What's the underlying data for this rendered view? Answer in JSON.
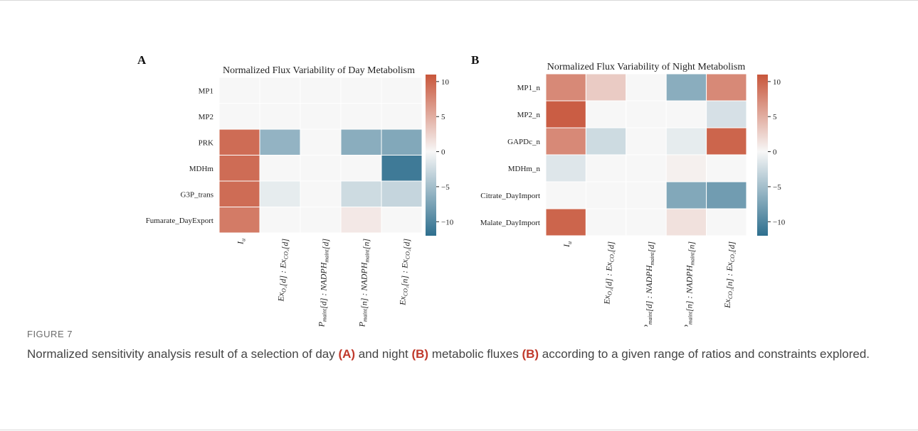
{
  "figure": {
    "label": "FIGURE 7",
    "caption_parts": [
      {
        "text": "Normalized sensitivity analysis result of a selection of day ",
        "bold": false
      },
      {
        "text": "(A)",
        "bold": true
      },
      {
        "text": " and night ",
        "bold": false
      },
      {
        "text": "(B)",
        "bold": true
      },
      {
        "text": " metabolic fluxes ",
        "bold": false
      },
      {
        "text": "(B)",
        "bold": true
      },
      {
        "text": " according to a given range of ratios and constraints explored.",
        "bold": false
      }
    ]
  },
  "colors": {
    "negative": "#2e6f8e",
    "neutral": "#f7f7f7",
    "positive": "#c8563b",
    "grid": "#ffffff"
  },
  "chart_data": [
    {
      "type": "heatmap",
      "panel_label": "A",
      "title": "Normalized Flux Variability of Day Metabolism",
      "rows": [
        "MP1",
        "MP2",
        "PRK",
        "MDHm",
        "G3P_trans",
        "Fumarate_DayExport"
      ],
      "columns": [
        {
          "base": "I",
          "sub": "u"
        },
        {
          "parts": [
            [
              "Ex",
              "O₂"
            ],
            [
              "[d] : Ex",
              ""
            ],
            [
              "",
              "CO₂"
            ],
            [
              "[d]",
              ""
            ]
          ],
          "label": "Ex_O2[d] : Ex_CO2[d]"
        },
        {
          "label": "ATP_maint[d] : NADPH_maint[d]"
        },
        {
          "label": "ATP_maint[n] : NADPH_maint[n]"
        },
        {
          "label": "Ex_CO2[n] : Ex_CO2[d]"
        }
      ],
      "values": [
        [
          0,
          0,
          0,
          0,
          0
        ],
        [
          0,
          0,
          0,
          0,
          0
        ],
        [
          9.5,
          -6,
          0,
          -6.5,
          -7
        ],
        [
          9.5,
          0,
          0,
          0,
          -11
        ],
        [
          9.5,
          -1,
          0,
          -2.5,
          -3
        ],
        [
          8.5,
          0,
          0,
          1,
          0
        ]
      ],
      "colorbar": {
        "min": -12,
        "max": 11,
        "ticks": [
          10,
          5,
          0,
          -5,
          -10
        ]
      }
    },
    {
      "type": "heatmap",
      "panel_label": "B",
      "title": "Normalized Flux Variability of Night Metabolism",
      "rows": [
        "MP1_n",
        "MP2_n",
        "GAPDc_n",
        "MDHm_n",
        "Citrate_DayImport",
        "Malate_DayImport"
      ],
      "columns": [
        {
          "label": "I_u"
        },
        {
          "label": "Ex_O2[d] : Ex_CO2[d]"
        },
        {
          "label": "ATP_maint[d] : NADPH_maint[d]"
        },
        {
          "label": "ATP_maint[n] : NADPH_maint[n]"
        },
        {
          "label": "Ex_CO2[n] : Ex_CO2[d]"
        }
      ],
      "values": [
        [
          7.5,
          3,
          0,
          -6.5,
          7.5
        ],
        [
          10.5,
          0,
          0,
          0,
          -2
        ],
        [
          7.5,
          -2.5,
          0,
          -1,
          10
        ],
        [
          -1.5,
          0,
          0,
          0.5,
          0
        ],
        [
          0,
          0,
          0,
          -7,
          -8
        ],
        [
          10,
          0,
          0,
          1.5,
          0
        ]
      ],
      "colorbar": {
        "min": -12,
        "max": 11,
        "ticks": [
          10,
          5,
          0,
          -5,
          -10
        ]
      }
    }
  ]
}
